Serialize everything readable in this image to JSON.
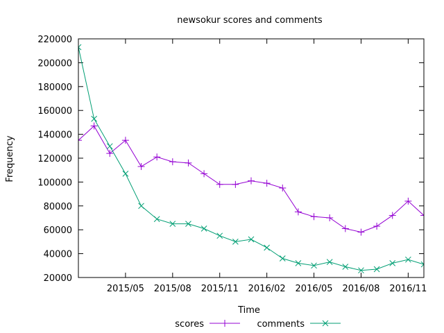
{
  "chart_data": {
    "type": "line",
    "title": "newsokur scores and comments",
    "xlabel": "Time",
    "ylabel": "Frequency",
    "ylim": [
      20000,
      220000
    ],
    "yticks": [
      20000,
      40000,
      60000,
      80000,
      100000,
      120000,
      140000,
      160000,
      180000,
      200000,
      220000
    ],
    "xlim": [
      "2015-02",
      "2016-12"
    ],
    "xticks": [
      "2015/05",
      "2015/08",
      "2015/11",
      "2016/02",
      "2016/05",
      "2016/08",
      "2016/11"
    ],
    "grid": false,
    "legend_position": "bottom",
    "x": [
      "2015-02",
      "2015-03",
      "2015-04",
      "2015-05",
      "2015-06",
      "2015-07",
      "2015-08",
      "2015-09",
      "2015-10",
      "2015-11",
      "2015-12",
      "2016-01",
      "2016-02",
      "2016-03",
      "2016-04",
      "2016-05",
      "2016-06",
      "2016-07",
      "2016-08",
      "2016-09",
      "2016-10",
      "2016-11",
      "2016-12"
    ],
    "series": [
      {
        "name": "scores",
        "color": "#9400d3",
        "marker": "plus",
        "values": [
          135000,
          147000,
          124000,
          135000,
          113000,
          121000,
          117000,
          116000,
          107000,
          98000,
          98000,
          101000,
          99000,
          95000,
          75000,
          71000,
          70000,
          61000,
          58000,
          63000,
          72000,
          84000,
          72000
        ]
      },
      {
        "name": "comments",
        "color": "#009e73",
        "marker": "cross",
        "values": [
          213000,
          153000,
          130000,
          107000,
          80000,
          69000,
          65000,
          65000,
          61000,
          55000,
          50000,
          52000,
          45000,
          36000,
          32000,
          30000,
          33000,
          29000,
          26000,
          27000,
          32000,
          35000,
          31000
        ]
      }
    ]
  }
}
